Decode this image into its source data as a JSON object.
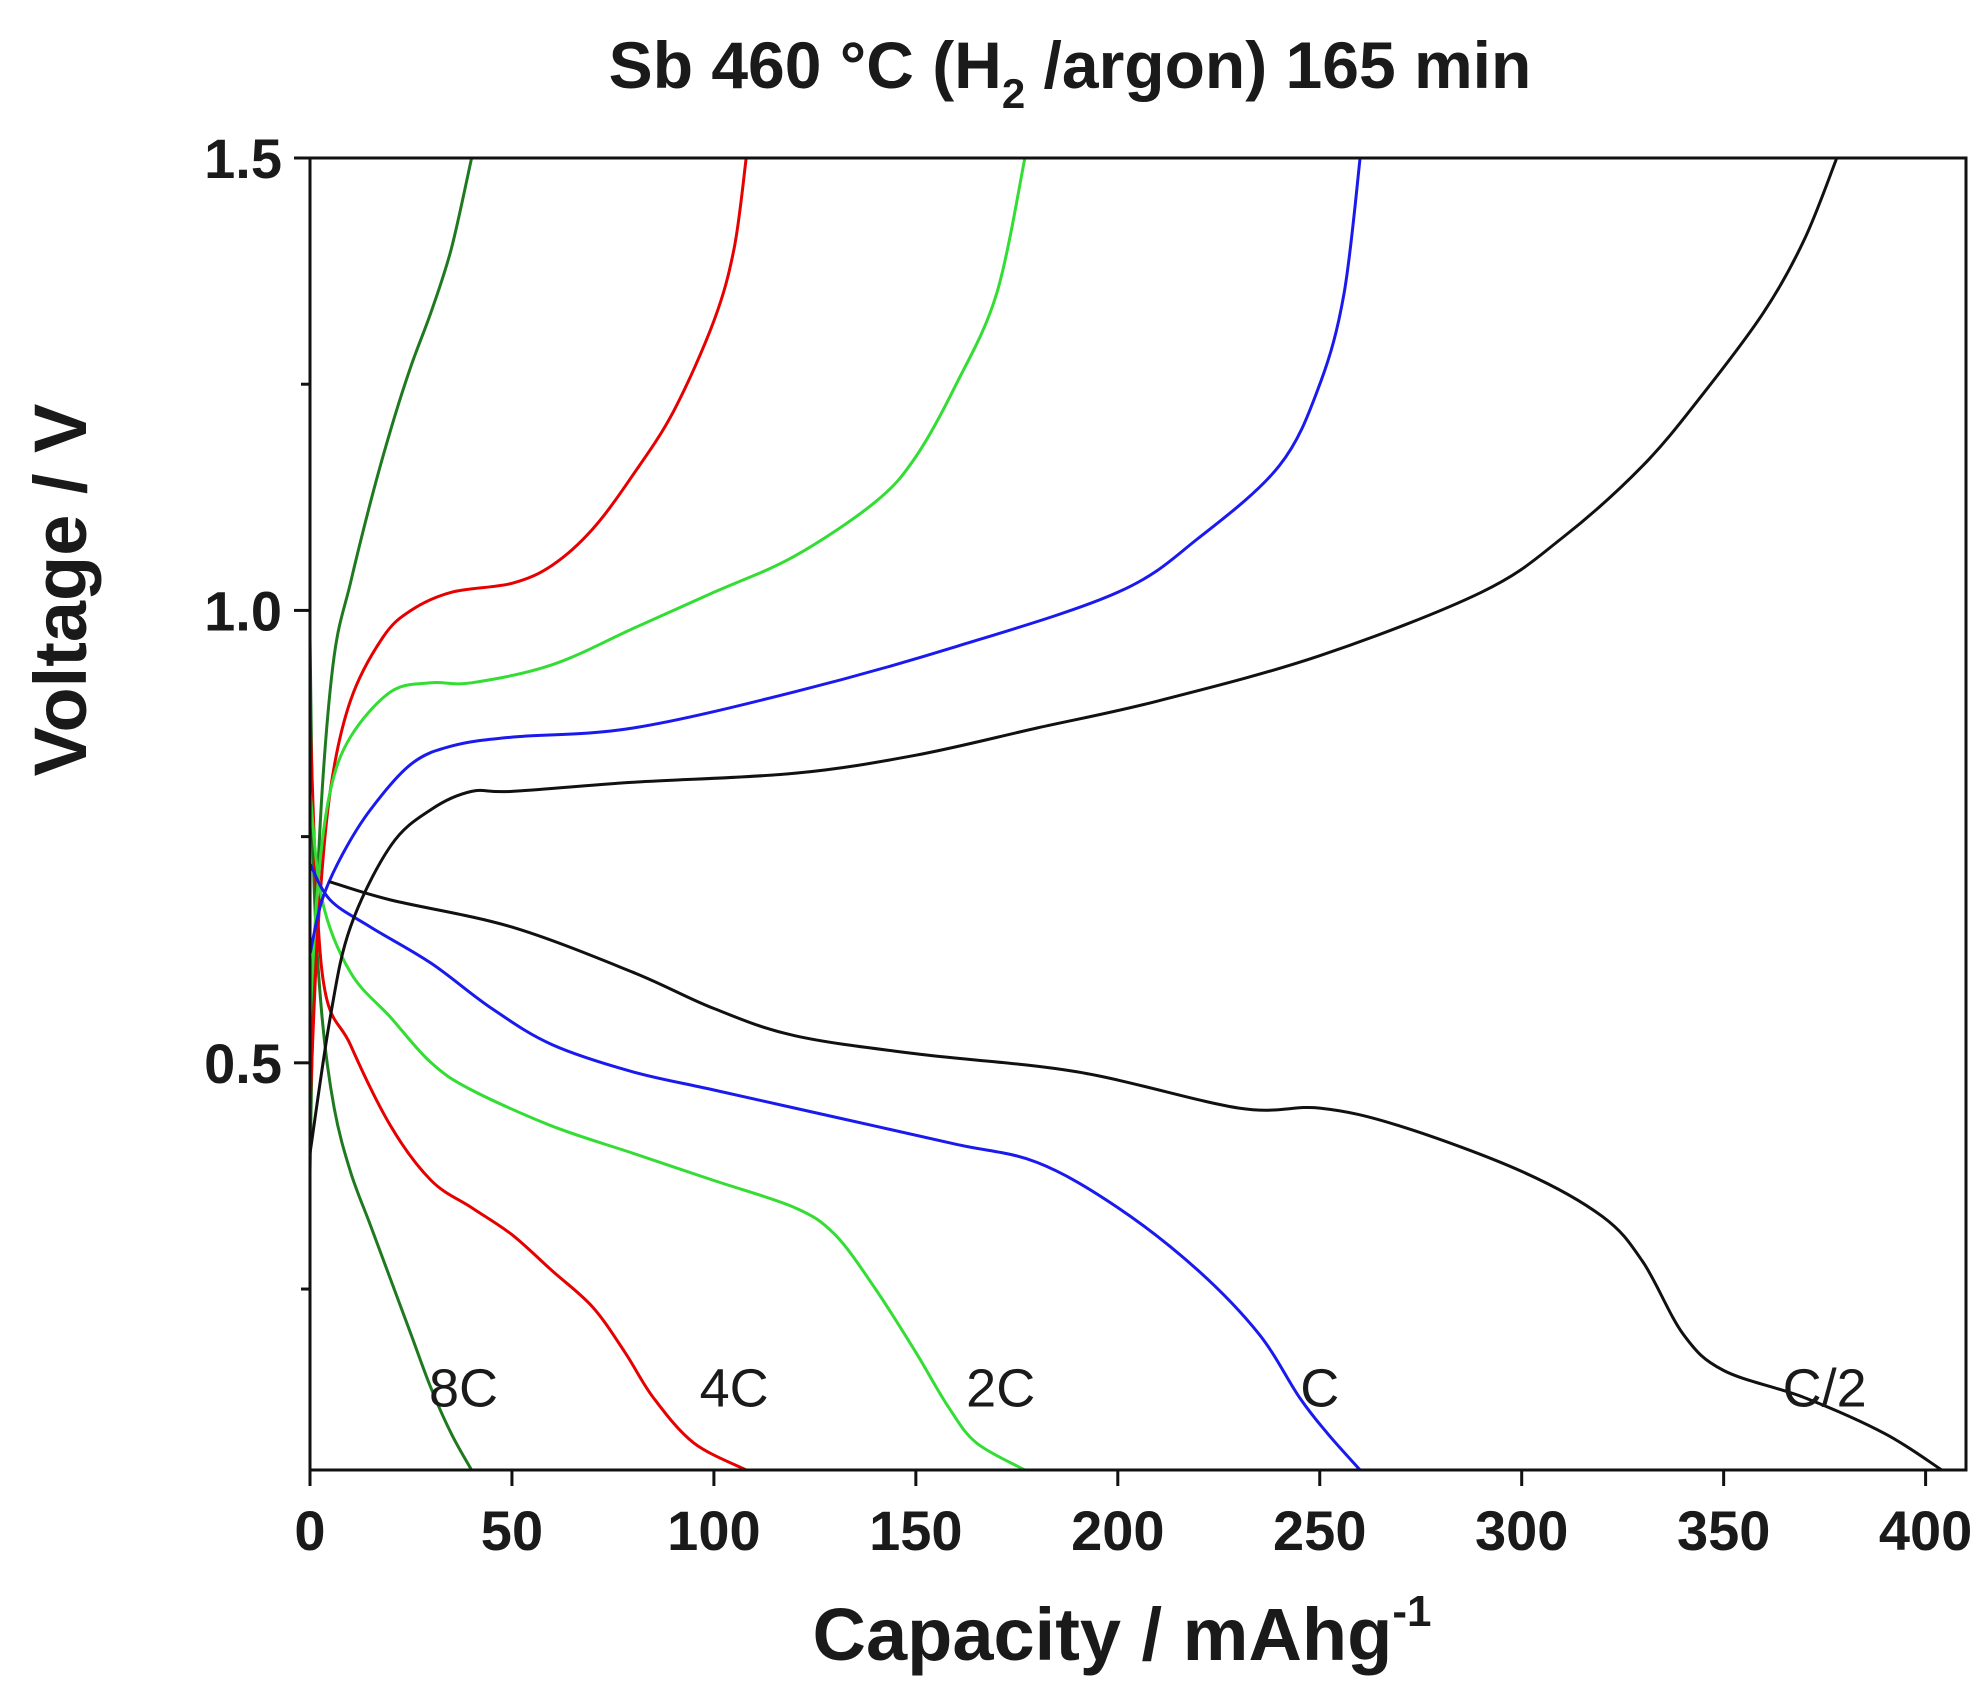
{
  "chart_data": {
    "type": "line",
    "title": {
      "main": "Sb 460 °C (H",
      "sub": "2",
      "rest": " /argon) 165 min"
    },
    "xlabel": {
      "main": "Capacity / mAhg",
      "sup": "-1"
    },
    "ylabel": "Voltage / V",
    "xlim": [
      0,
      410
    ],
    "ylim": [
      0.05,
      1.5
    ],
    "xticks": [
      {
        "value": 0,
        "label": "0"
      },
      {
        "value": 50,
        "label": "50"
      },
      {
        "value": 100,
        "label": "100"
      },
      {
        "value": 150,
        "label": "150"
      },
      {
        "value": 200,
        "label": "200"
      },
      {
        "value": 250,
        "label": "250"
      },
      {
        "value": 300,
        "label": "300"
      },
      {
        "value": 350,
        "label": "350"
      },
      {
        "value": 400,
        "label": "400"
      }
    ],
    "yticks": [
      {
        "value": 0.5,
        "label": "0.5"
      },
      {
        "value": 1.0,
        "label": "1.0"
      },
      {
        "value": 1.5,
        "label": "1.5"
      }
    ],
    "yminor": [
      0.25,
      0.75,
      1.25
    ],
    "grid": false,
    "series": [
      {
        "name": "8C",
        "color": "#1f7a1f",
        "label_at": [
          38,
          0.14
        ],
        "discharge": [
          [
            0,
            0.97
          ],
          [
            1,
            0.7
          ],
          [
            3,
            0.55
          ],
          [
            6,
            0.45
          ],
          [
            10,
            0.38
          ],
          [
            15,
            0.32
          ],
          [
            20,
            0.26
          ],
          [
            25,
            0.2
          ],
          [
            30,
            0.14
          ],
          [
            35,
            0.09
          ],
          [
            40,
            0.05
          ]
        ],
        "charge": [
          [
            0,
            0.38
          ],
          [
            1,
            0.6
          ],
          [
            3,
            0.8
          ],
          [
            6,
            0.95
          ],
          [
            10,
            1.03
          ],
          [
            15,
            1.12
          ],
          [
            20,
            1.2
          ],
          [
            25,
            1.27
          ],
          [
            30,
            1.33
          ],
          [
            35,
            1.4
          ],
          [
            40,
            1.5
          ]
        ]
      },
      {
        "name": "4C",
        "color": "#e60000",
        "label_at": [
          105,
          0.14
        ],
        "discharge": [
          [
            0,
            0.88
          ],
          [
            3,
            0.6
          ],
          [
            10,
            0.52
          ],
          [
            20,
            0.43
          ],
          [
            30,
            0.37
          ],
          [
            40,
            0.34
          ],
          [
            50,
            0.31
          ],
          [
            60,
            0.27
          ],
          [
            70,
            0.23
          ],
          [
            78,
            0.18
          ],
          [
            85,
            0.13
          ],
          [
            95,
            0.08
          ],
          [
            108,
            0.05
          ]
        ],
        "charge": [
          [
            0,
            0.45
          ],
          [
            2,
            0.65
          ],
          [
            5,
            0.8
          ],
          [
            10,
            0.9
          ],
          [
            18,
            0.97
          ],
          [
            25,
            1.0
          ],
          [
            35,
            1.02
          ],
          [
            50,
            1.03
          ],
          [
            60,
            1.05
          ],
          [
            70,
            1.09
          ],
          [
            80,
            1.15
          ],
          [
            90,
            1.22
          ],
          [
            100,
            1.32
          ],
          [
            105,
            1.4
          ],
          [
            108,
            1.5
          ]
        ]
      },
      {
        "name": "2C",
        "color": "#33dd33",
        "label_at": [
          171,
          0.14
        ],
        "discharge": [
          [
            0,
            0.8
          ],
          [
            3,
            0.68
          ],
          [
            10,
            0.6
          ],
          [
            20,
            0.55
          ],
          [
            30,
            0.5
          ],
          [
            40,
            0.47
          ],
          [
            60,
            0.43
          ],
          [
            80,
            0.4
          ],
          [
            100,
            0.37
          ],
          [
            120,
            0.34
          ],
          [
            130,
            0.31
          ],
          [
            140,
            0.25
          ],
          [
            150,
            0.18
          ],
          [
            158,
            0.12
          ],
          [
            165,
            0.08
          ],
          [
            177,
            0.05
          ]
        ],
        "charge": [
          [
            0,
            0.55
          ],
          [
            2,
            0.7
          ],
          [
            5,
            0.8
          ],
          [
            10,
            0.86
          ],
          [
            20,
            0.91
          ],
          [
            30,
            0.92
          ],
          [
            40,
            0.92
          ],
          [
            60,
            0.94
          ],
          [
            80,
            0.98
          ],
          [
            100,
            1.02
          ],
          [
            120,
            1.06
          ],
          [
            140,
            1.12
          ],
          [
            150,
            1.17
          ],
          [
            160,
            1.25
          ],
          [
            170,
            1.35
          ],
          [
            177,
            1.5
          ]
        ]
      },
      {
        "name": "C",
        "color": "#1a1aee",
        "label_at": [
          250,
          0.14
        ],
        "discharge": [
          [
            0,
            0.72
          ],
          [
            5,
            0.68
          ],
          [
            15,
            0.65
          ],
          [
            30,
            0.61
          ],
          [
            45,
            0.56
          ],
          [
            60,
            0.52
          ],
          [
            80,
            0.49
          ],
          [
            100,
            0.47
          ],
          [
            130,
            0.44
          ],
          [
            160,
            0.41
          ],
          [
            180,
            0.39
          ],
          [
            200,
            0.34
          ],
          [
            220,
            0.27
          ],
          [
            235,
            0.2
          ],
          [
            245,
            0.13
          ],
          [
            252,
            0.09
          ],
          [
            260,
            0.05
          ]
        ],
        "charge": [
          [
            0,
            0.62
          ],
          [
            3,
            0.68
          ],
          [
            8,
            0.73
          ],
          [
            15,
            0.78
          ],
          [
            25,
            0.83
          ],
          [
            35,
            0.85
          ],
          [
            50,
            0.86
          ],
          [
            80,
            0.87
          ],
          [
            120,
            0.91
          ],
          [
            160,
            0.96
          ],
          [
            200,
            1.02
          ],
          [
            220,
            1.08
          ],
          [
            240,
            1.16
          ],
          [
            250,
            1.25
          ],
          [
            256,
            1.35
          ],
          [
            260,
            1.5
          ]
        ]
      },
      {
        "name": "C/2",
        "color": "#111111",
        "label_at": [
          375,
          0.14
        ],
        "discharge": [
          [
            5,
            0.7
          ],
          [
            20,
            0.68
          ],
          [
            50,
            0.65
          ],
          [
            80,
            0.6
          ],
          [
            100,
            0.56
          ],
          [
            120,
            0.53
          ],
          [
            150,
            0.51
          ],
          [
            190,
            0.49
          ],
          [
            230,
            0.45
          ],
          [
            250,
            0.45
          ],
          [
            270,
            0.43
          ],
          [
            300,
            0.38
          ],
          [
            320,
            0.33
          ],
          [
            330,
            0.28
          ],
          [
            340,
            0.2
          ],
          [
            350,
            0.16
          ],
          [
            370,
            0.13
          ],
          [
            390,
            0.09
          ],
          [
            404,
            0.05
          ]
        ],
        "charge": [
          [
            0,
            0.4
          ],
          [
            5,
            0.55
          ],
          [
            10,
            0.65
          ],
          [
            20,
            0.74
          ],
          [
            30,
            0.78
          ],
          [
            40,
            0.8
          ],
          [
            50,
            0.8
          ],
          [
            80,
            0.81
          ],
          [
            120,
            0.82
          ],
          [
            150,
            0.84
          ],
          [
            180,
            0.87
          ],
          [
            210,
            0.9
          ],
          [
            250,
            0.95
          ],
          [
            290,
            1.02
          ],
          [
            310,
            1.08
          ],
          [
            330,
            1.16
          ],
          [
            345,
            1.24
          ],
          [
            360,
            1.33
          ],
          [
            370,
            1.41
          ],
          [
            378,
            1.5
          ]
        ]
      }
    ]
  }
}
